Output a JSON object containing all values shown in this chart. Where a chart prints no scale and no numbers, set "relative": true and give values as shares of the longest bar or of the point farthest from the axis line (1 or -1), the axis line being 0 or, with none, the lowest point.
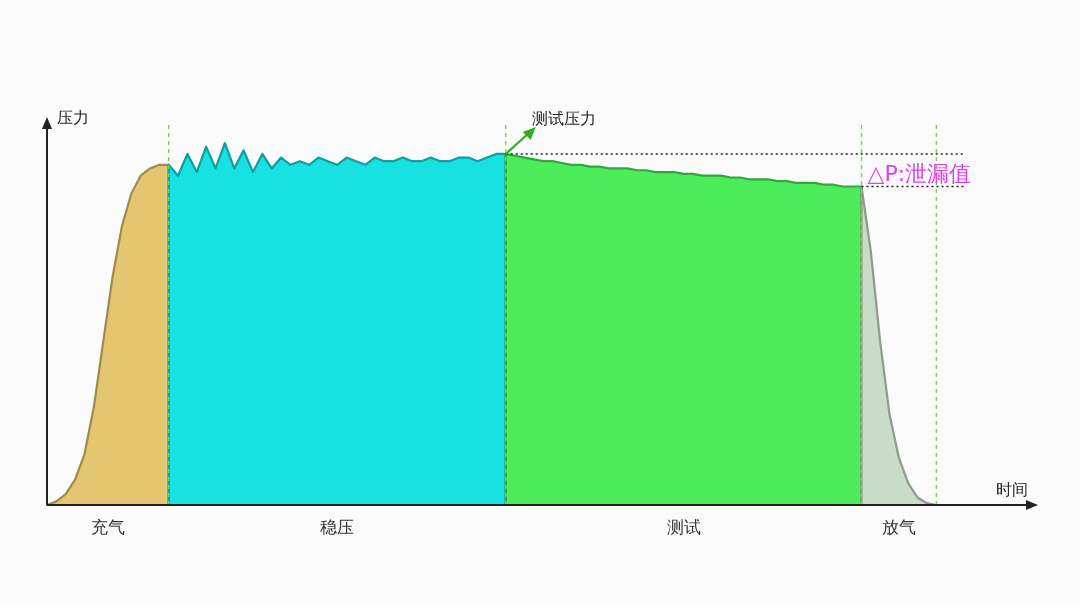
{
  "chart_data": {
    "type": "area",
    "relative": true,
    "tick_labels": false,
    "grid": "x",
    "xlabel": "时间",
    "ylabel": "压力",
    "categories": [
      null,
      null,
      null,
      null,
      null,
      null,
      null,
      null,
      null,
      null,
      null,
      null,
      null,
      null,
      null,
      null,
      null,
      null,
      null,
      null,
      null,
      null,
      null,
      null,
      null,
      null,
      null,
      null,
      null,
      null,
      null,
      null,
      null,
      null,
      null,
      null,
      null,
      null,
      null,
      null,
      null,
      null,
      null,
      null,
      null,
      null,
      null,
      null,
      null,
      null,
      null,
      null,
      null,
      null,
      null,
      null,
      null,
      null,
      null,
      null,
      null,
      null,
      null,
      null,
      null,
      null,
      null,
      null,
      null,
      null,
      null,
      null,
      null,
      null,
      null,
      null,
      null,
      null,
      null,
      null,
      null,
      null,
      null,
      null,
      null,
      null,
      null,
      null,
      null,
      null,
      null,
      null,
      null,
      null,
      null,
      null,
      null,
      null,
      null,
      null,
      null,
      null,
      null,
      null,
      null,
      null
    ],
    "series": [
      {
        "name": "充气",
        "color": "#e3c66f",
        "values": [
          0,
          0.01,
          0.03,
          0.07,
          0.14,
          0.27,
          0.45,
          0.63,
          0.77,
          0.86,
          0.91,
          0.93,
          0.94,
          0.94,
          null,
          null,
          null,
          null,
          null,
          null,
          null,
          null,
          null,
          null,
          null,
          null,
          null,
          null,
          null,
          null,
          null,
          null,
          null,
          null,
          null,
          null,
          null,
          null,
          null,
          null,
          null,
          null,
          null,
          null,
          null,
          null,
          null,
          null,
          null,
          null,
          null,
          null,
          null,
          null,
          null,
          null,
          null,
          null,
          null,
          null,
          null,
          null,
          null,
          null,
          null,
          null,
          null,
          null,
          null,
          null,
          null,
          null,
          null,
          null,
          null,
          null,
          null,
          null,
          null,
          null,
          null,
          null,
          null,
          null,
          null,
          null,
          null,
          null,
          null,
          null,
          null,
          null,
          null,
          null,
          null,
          null,
          null,
          null,
          null,
          null,
          null,
          null,
          null,
          null,
          null,
          null
        ]
      },
      {
        "name": "稳压",
        "color": "#17e1e1",
        "values": [
          null,
          null,
          null,
          null,
          null,
          null,
          null,
          null,
          null,
          null,
          null,
          null,
          null,
          0.94,
          0.91,
          0.97,
          0.92,
          0.99,
          0.93,
          1.0,
          0.93,
          0.98,
          0.92,
          0.97,
          0.93,
          0.96,
          0.94,
          0.95,
          0.94,
          0.96,
          0.95,
          0.94,
          0.96,
          0.95,
          0.94,
          0.96,
          0.95,
          0.95,
          0.96,
          0.95,
          0.95,
          0.96,
          0.95,
          0.95,
          0.96,
          0.96,
          0.95,
          0.96,
          0.97,
          0.97,
          null,
          null,
          null,
          null,
          null,
          null,
          null,
          null,
          null,
          null,
          null,
          null,
          null,
          null,
          null,
          null,
          null,
          null,
          null,
          null,
          null,
          null,
          null,
          null,
          null,
          null,
          null,
          null,
          null,
          null,
          null,
          null,
          null,
          null,
          null,
          null,
          null,
          null,
          null,
          null,
          null,
          null,
          null,
          null,
          null,
          null,
          null,
          null,
          null,
          null,
          null,
          null,
          null,
          null,
          null,
          null
        ]
      },
      {
        "name": "测试",
        "color": "#4ced5a",
        "values": [
          null,
          null,
          null,
          null,
          null,
          null,
          null,
          null,
          null,
          null,
          null,
          null,
          null,
          null,
          null,
          null,
          null,
          null,
          null,
          null,
          null,
          null,
          null,
          null,
          null,
          null,
          null,
          null,
          null,
          null,
          null,
          null,
          null,
          null,
          null,
          null,
          null,
          null,
          null,
          null,
          null,
          null,
          null,
          null,
          null,
          null,
          null,
          null,
          null,
          0.97,
          0.965,
          0.96,
          0.955,
          0.95,
          0.95,
          0.945,
          0.94,
          0.94,
          0.935,
          0.935,
          0.93,
          0.93,
          0.93,
          0.925,
          0.925,
          0.92,
          0.92,
          0.92,
          0.915,
          0.915,
          0.91,
          0.91,
          0.91,
          0.905,
          0.905,
          0.9,
          0.9,
          0.9,
          0.895,
          0.895,
          0.89,
          0.89,
          0.89,
          0.885,
          0.885,
          0.88,
          0.88,
          0.88,
          null,
          null,
          null,
          null,
          null,
          null,
          null,
          null,
          null,
          null,
          null,
          null,
          null,
          null,
          null,
          null,
          null,
          null
        ]
      },
      {
        "name": "放气",
        "color": "#c9dcc8",
        "values": [
          null,
          null,
          null,
          null,
          null,
          null,
          null,
          null,
          null,
          null,
          null,
          null,
          null,
          null,
          null,
          null,
          null,
          null,
          null,
          null,
          null,
          null,
          null,
          null,
          null,
          null,
          null,
          null,
          null,
          null,
          null,
          null,
          null,
          null,
          null,
          null,
          null,
          null,
          null,
          null,
          null,
          null,
          null,
          null,
          null,
          null,
          null,
          null,
          null,
          null,
          null,
          null,
          null,
          null,
          null,
          null,
          null,
          null,
          null,
          null,
          null,
          null,
          null,
          null,
          null,
          null,
          null,
          null,
          null,
          null,
          null,
          null,
          null,
          null,
          null,
          null,
          null,
          null,
          null,
          null,
          null,
          null,
          null,
          null,
          null,
          null,
          null,
          0.88,
          0.7,
          0.45,
          0.25,
          0.13,
          0.06,
          0.02,
          0.005,
          0,
          null,
          null,
          null,
          null,
          null,
          null,
          null,
          null,
          null,
          null
        ]
      }
    ],
    "ref_lines": [
      {
        "axis": "y",
        "value": 0.97,
        "color": "#222222",
        "line_style": "dotted"
      },
      {
        "axis": "y",
        "value": 0.88,
        "color": "#222222",
        "line_style": "dotted",
        "label": "△P:泄漏值"
      }
    ],
    "annotations": [
      {
        "text": "测试压力",
        "y": 0.97
      }
    ]
  }
}
